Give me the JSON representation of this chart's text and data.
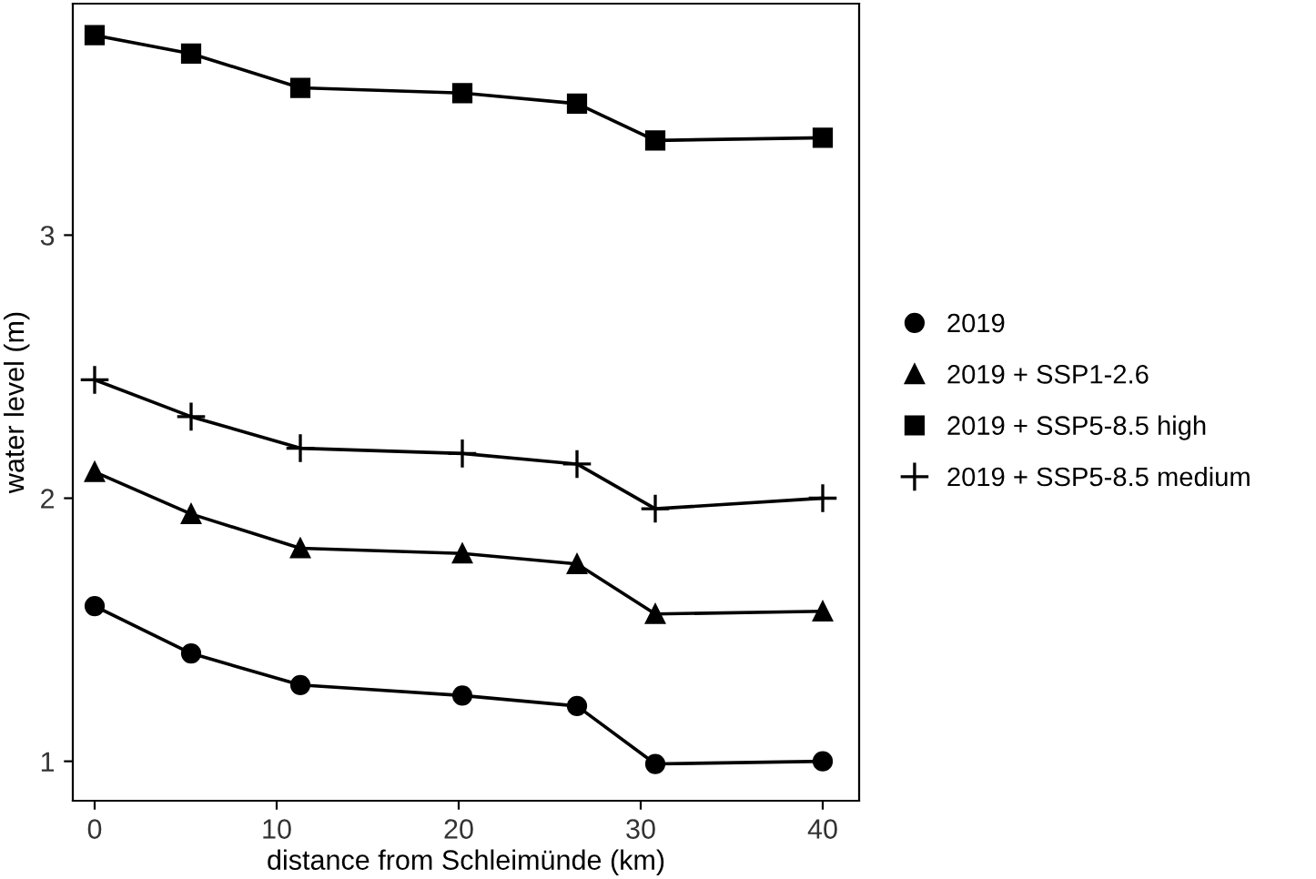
{
  "chart_data": {
    "type": "line",
    "xlabel": "distance from Schleimünde (km)",
    "ylabel": "water level (m)",
    "x": [
      0,
      5.3,
      11.3,
      20.2,
      26.5,
      30.8,
      40
    ],
    "series": [
      {
        "name": "2019",
        "color": "#000000",
        "marker": "circle",
        "values": [
          1.59,
          1.41,
          1.29,
          1.25,
          1.21,
          0.99,
          1.0
        ]
      },
      {
        "name": "2019 + SSP1-2.6",
        "color": "#000000",
        "marker": "triangle",
        "values": [
          2.1,
          1.94,
          1.81,
          1.79,
          1.75,
          1.56,
          1.57
        ]
      },
      {
        "name": "2019 + SSP5-8.5 high",
        "color": "#000000",
        "marker": "square",
        "values": [
          3.76,
          3.69,
          3.56,
          3.54,
          3.5,
          3.36,
          3.37
        ]
      },
      {
        "name": "2019 + SSP5-8.5 medium",
        "color": "#000000",
        "marker": "cross",
        "values": [
          2.45,
          2.31,
          2.19,
          2.17,
          2.13,
          1.96,
          2.0
        ]
      }
    ],
    "xlim": [
      -1.2,
      42
    ],
    "ylim": [
      0.85,
      3.88
    ],
    "xticks": [
      0,
      10,
      20,
      30,
      40
    ],
    "yticks": [
      1,
      2,
      3
    ],
    "legend": "right",
    "grid": false
  }
}
